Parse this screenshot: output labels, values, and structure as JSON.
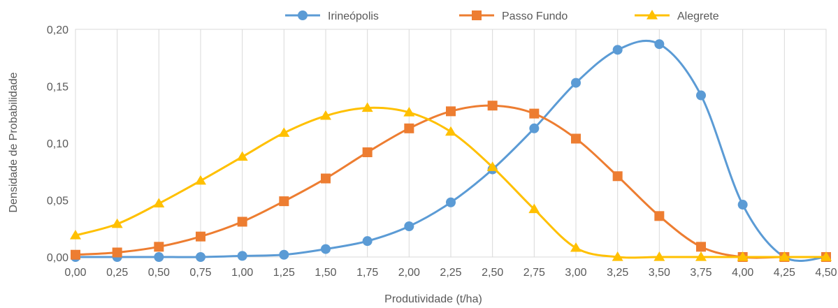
{
  "chart_data": {
    "type": "line",
    "title": "",
    "xlabel": "Produtividade (t/ha)",
    "ylabel": "Densidade de Probabilidade",
    "x": [
      0,
      0.25,
      0.5,
      0.75,
      1.0,
      1.25,
      1.5,
      1.75,
      2.0,
      2.25,
      2.5,
      2.75,
      3.0,
      3.25,
      3.5,
      3.75,
      4.0,
      4.25,
      4.5
    ],
    "x_tick_labels": [
      "0,00",
      "0,25",
      "0,50",
      "0,75",
      "1,00",
      "1,25",
      "1,50",
      "1,75",
      "2,00",
      "2,25",
      "2,50",
      "2,75",
      "3,00",
      "3,25",
      "3,50",
      "3,75",
      "4,00",
      "4,25",
      "4,50"
    ],
    "y_tick_values": [
      0,
      0.05,
      0.1,
      0.15,
      0.2
    ],
    "y_tick_labels": [
      "0,00",
      "0,05",
      "0,10",
      "0,15",
      "0,20"
    ],
    "xlim": [
      0,
      4.5
    ],
    "ylim": [
      0,
      0.2
    ],
    "grid": "vertical",
    "legend_position": "top",
    "series": [
      {
        "name": "Irineópolis",
        "color": "#5B9BD5",
        "marker": "circle",
        "values": [
          0.0,
          0.0,
          0.0,
          0.0,
          0.001,
          0.002,
          0.007,
          0.014,
          0.027,
          0.048,
          0.077,
          0.113,
          0.153,
          0.182,
          0.187,
          0.142,
          0.046,
          0.0,
          0.0
        ]
      },
      {
        "name": "Passo Fundo",
        "color": "#ED7D31",
        "marker": "square",
        "values": [
          0.002,
          0.004,
          0.009,
          0.018,
          0.031,
          0.049,
          0.069,
          0.092,
          0.113,
          0.128,
          0.133,
          0.126,
          0.104,
          0.071,
          0.036,
          0.009,
          0.0,
          0.0,
          0.0
        ]
      },
      {
        "name": "Alegrete",
        "color": "#FFC000",
        "marker": "triangle",
        "values": [
          0.019,
          0.029,
          0.047,
          0.067,
          0.088,
          0.109,
          0.124,
          0.131,
          0.127,
          0.11,
          0.079,
          0.042,
          0.008,
          0.0,
          0.0,
          0.0,
          0.0,
          0.0,
          0.0
        ]
      }
    ]
  }
}
